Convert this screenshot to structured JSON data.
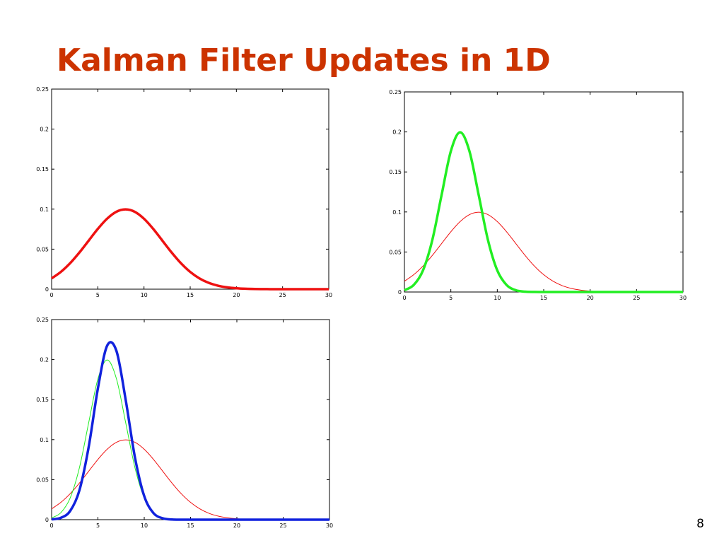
{
  "slide": {
    "title": "Kalman Filter Updates in 1D",
    "page_number": 8
  },
  "chart_data": [
    {
      "type": "line",
      "x": [
        0,
        1,
        2,
        3,
        4,
        5,
        6,
        7,
        8,
        9,
        10,
        11,
        12,
        13,
        14,
        15,
        16,
        17,
        18,
        19,
        20,
        21,
        22,
        23,
        24,
        25,
        26,
        27,
        28,
        29,
        30
      ],
      "series": [
        {
          "color": "#ee1111",
          "line_width": 3.5,
          "values": [
            0.0135,
            0.0216,
            0.0324,
            0.0457,
            0.0605,
            0.0753,
            0.088,
            0.0967,
            0.0997,
            0.0967,
            0.088,
            0.0753,
            0.0605,
            0.0457,
            0.0324,
            0.0216,
            0.0135,
            0.0079,
            0.0044,
            0.0023,
            0.0011,
            0.0005,
            0.0002,
            0.0001,
            0,
            0,
            0,
            0,
            0,
            0,
            0
          ]
        }
      ],
      "xlim": [
        0,
        30
      ],
      "ylim": [
        0,
        0.25
      ],
      "xticks": [
        0,
        5,
        10,
        15,
        20,
        25,
        30
      ],
      "yticks": [
        0,
        0.05,
        0.1,
        0.15,
        0.2,
        0.25
      ]
    },
    {
      "type": "line",
      "x": [
        0,
        1,
        2,
        3,
        4,
        5,
        6,
        7,
        8,
        9,
        10,
        11,
        12,
        13,
        14,
        15,
        16,
        17,
        18,
        19,
        20,
        21,
        22,
        23,
        24,
        25,
        26,
        27,
        28,
        29,
        30
      ],
      "series": [
        {
          "color": "#ee1111",
          "line_width": 1,
          "values": [
            0.0135,
            0.0216,
            0.0324,
            0.0457,
            0.0605,
            0.0753,
            0.088,
            0.0967,
            0.0997,
            0.0967,
            0.088,
            0.0753,
            0.0605,
            0.0457,
            0.0324,
            0.0216,
            0.0135,
            0.0079,
            0.0044,
            0.0023,
            0.0011,
            0.0005,
            0.0002,
            0.0001,
            0,
            0,
            0,
            0,
            0,
            0,
            0
          ]
        },
        {
          "color": "#22ee22",
          "line_width": 3.5,
          "values": [
            0.0022,
            0.0088,
            0.027,
            0.0648,
            0.121,
            0.176,
            0.1995,
            0.176,
            0.121,
            0.0648,
            0.027,
            0.0088,
            0.0022,
            0.0004,
            0.0001,
            0,
            0,
            0,
            0,
            0,
            0,
            0,
            0,
            0,
            0,
            0,
            0,
            0,
            0,
            0,
            0
          ]
        }
      ],
      "xlim": [
        0,
        30
      ],
      "ylim": [
        0,
        0.25
      ],
      "xticks": [
        0,
        5,
        10,
        15,
        20,
        25,
        30
      ],
      "yticks": [
        0,
        0.05,
        0.1,
        0.15,
        0.2,
        0.25
      ]
    },
    {
      "type": "line",
      "x": [
        0,
        1,
        2,
        3,
        4,
        5,
        6,
        7,
        8,
        9,
        10,
        11,
        12,
        13,
        14,
        15,
        16,
        17,
        18,
        19,
        20,
        21,
        22,
        23,
        24,
        25,
        26,
        27,
        28,
        29,
        30
      ],
      "series": [
        {
          "color": "#ee1111",
          "line_width": 1,
          "values": [
            0.0135,
            0.0216,
            0.0324,
            0.0457,
            0.0605,
            0.0753,
            0.088,
            0.0967,
            0.0997,
            0.0967,
            0.088,
            0.0753,
            0.0605,
            0.0457,
            0.0324,
            0.0216,
            0.0135,
            0.0079,
            0.0044,
            0.0023,
            0.0011,
            0.0005,
            0.0002,
            0.0001,
            0,
            0,
            0,
            0,
            0,
            0,
            0
          ]
        },
        {
          "color": "#22ee22",
          "line_width": 1,
          "values": [
            0.0022,
            0.0088,
            0.027,
            0.0648,
            0.121,
            0.176,
            0.1995,
            0.176,
            0.121,
            0.0648,
            0.027,
            0.0088,
            0.0022,
            0.0004,
            0.0001,
            0,
            0,
            0,
            0,
            0,
            0,
            0,
            0,
            0,
            0,
            0,
            0,
            0,
            0,
            0,
            0
          ]
        },
        {
          "color": "#1122dd",
          "line_width": 3.5,
          "values": [
            0.0004,
            0.0023,
            0.0108,
            0.0366,
            0.0907,
            0.1642,
            0.2175,
            0.2108,
            0.1495,
            0.0776,
            0.0294,
            0.0082,
            0.0017,
            0.0002,
            0,
            0,
            0,
            0,
            0,
            0,
            0,
            0,
            0,
            0,
            0,
            0,
            0,
            0,
            0,
            0,
            0
          ]
        }
      ],
      "xlim": [
        0,
        30
      ],
      "ylim": [
        0,
        0.25
      ],
      "xticks": [
        0,
        5,
        10,
        15,
        20,
        25,
        30
      ],
      "yticks": [
        0,
        0.05,
        0.1,
        0.15,
        0.2,
        0.25
      ]
    }
  ]
}
